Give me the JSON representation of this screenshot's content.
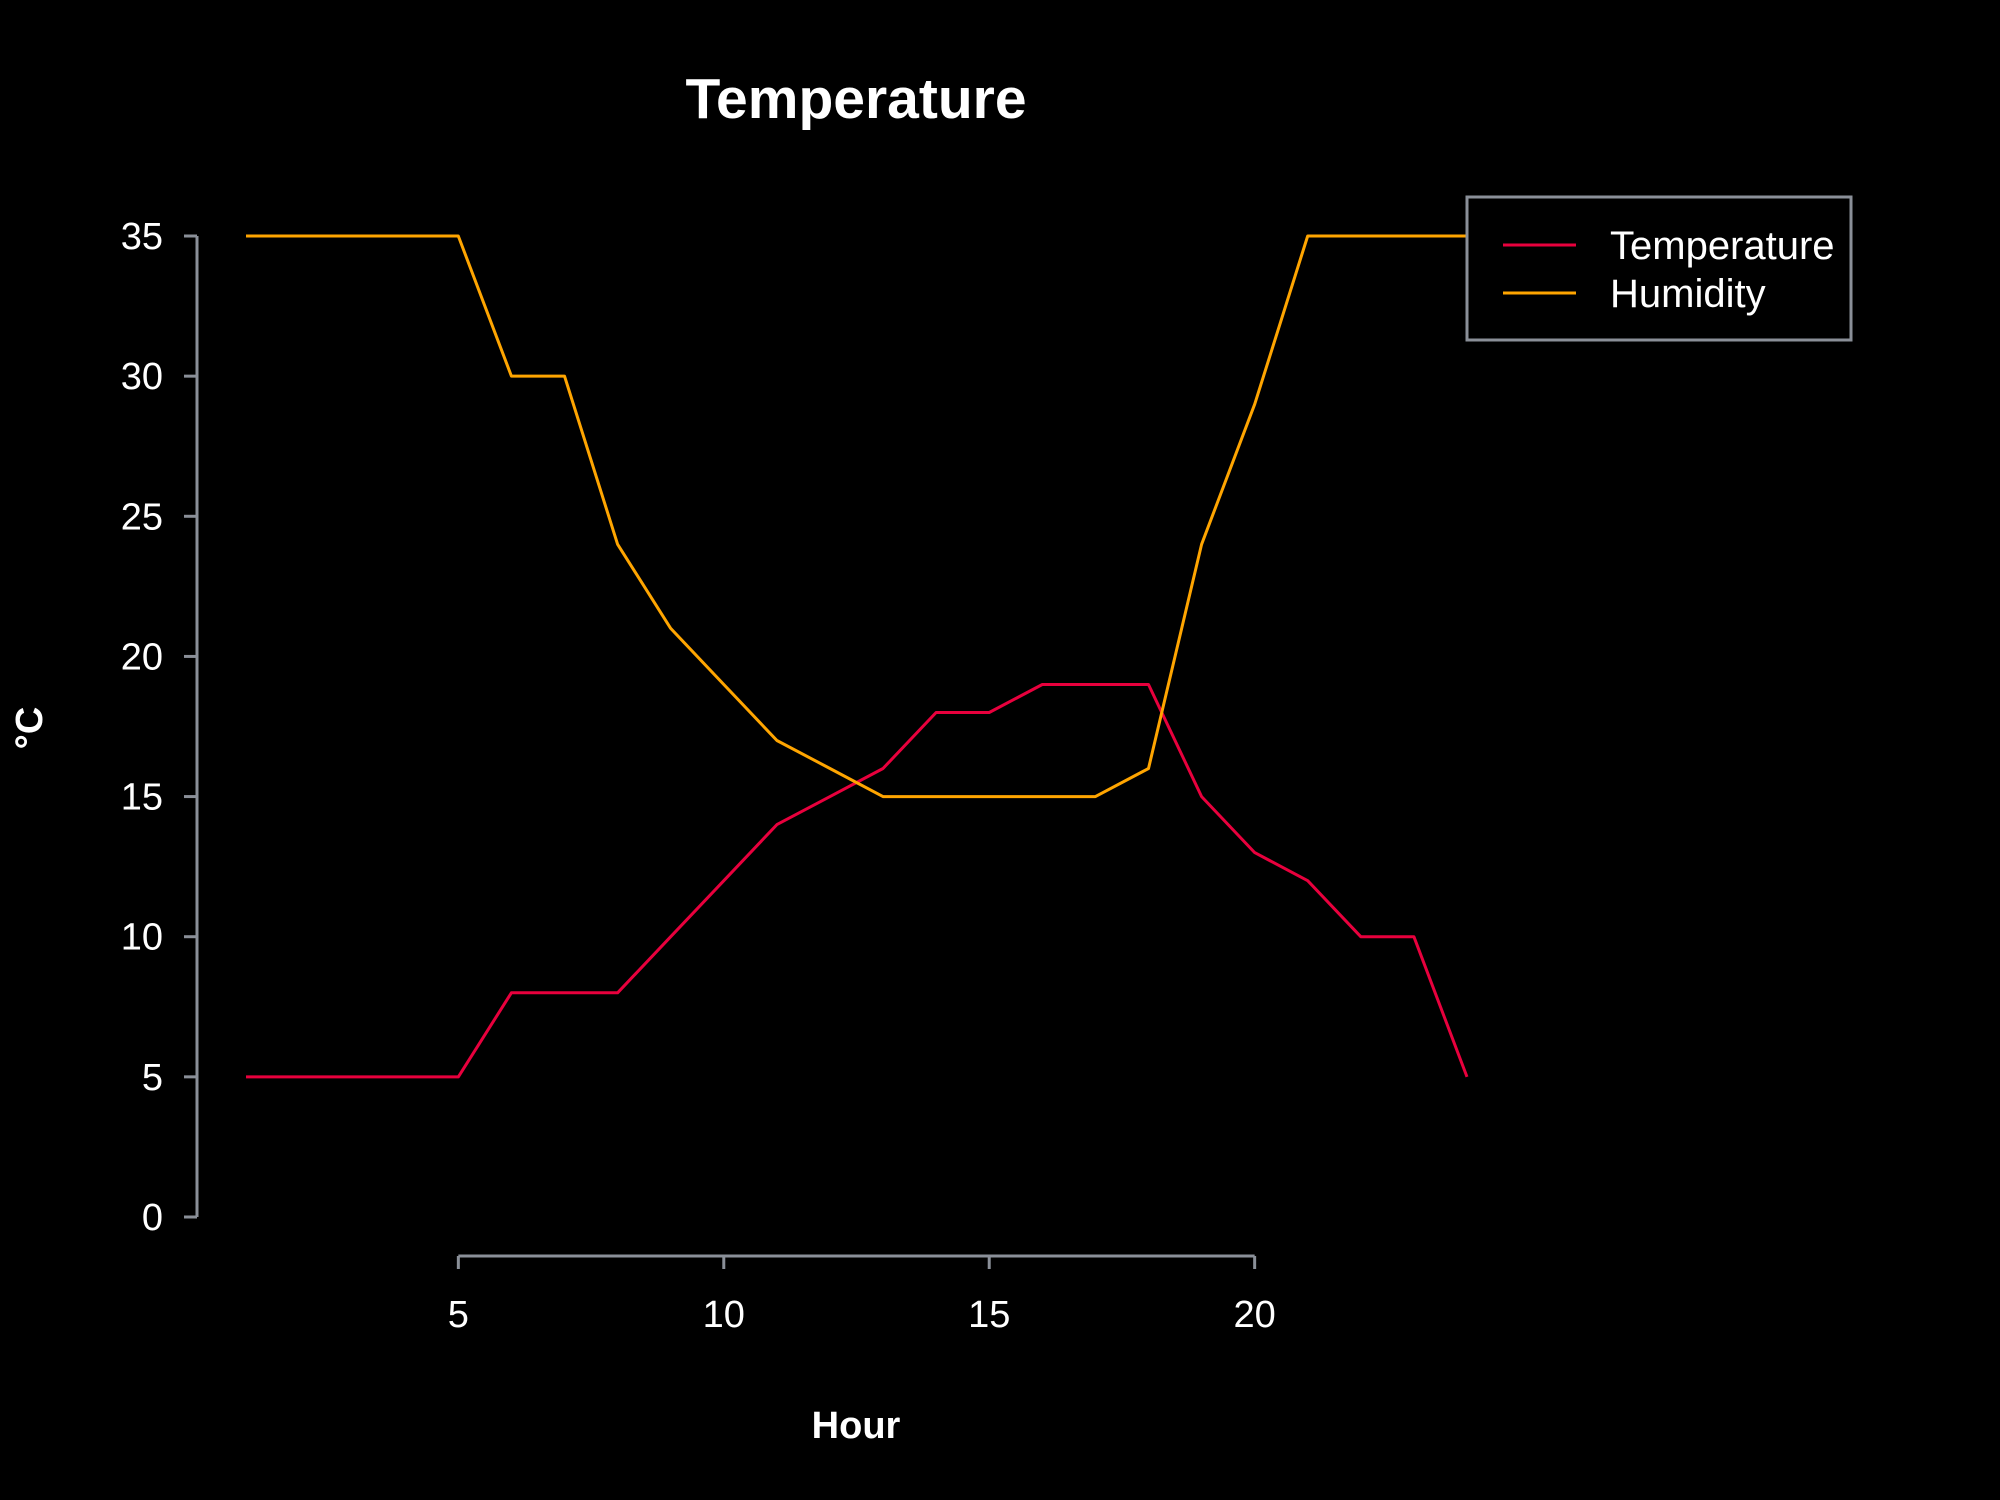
{
  "chart_data": {
    "type": "line",
    "title": "Temperature",
    "xlabel": "Hour",
    "ylabel": "°C",
    "xlim": [
      1,
      24
    ],
    "ylim": [
      0,
      35
    ],
    "x_ticks": [
      5,
      10,
      15,
      20
    ],
    "y_ticks": [
      0,
      5,
      10,
      15,
      20,
      25,
      30,
      35
    ],
    "x": [
      1,
      2,
      3,
      4,
      5,
      6,
      7,
      8,
      9,
      10,
      11,
      12,
      13,
      14,
      15,
      16,
      17,
      18,
      19,
      20,
      21,
      22,
      23,
      24
    ],
    "series": [
      {
        "name": "Temperature",
        "color": "#e8003d",
        "values": [
          5,
          5,
          5,
          5,
          5,
          8,
          8,
          8,
          10,
          12,
          14,
          15,
          16,
          18,
          18,
          19,
          19,
          19,
          15,
          13,
          12,
          10,
          10,
          5
        ]
      },
      {
        "name": "Humidity",
        "color": "#ffa500",
        "values": [
          35,
          35,
          35,
          35,
          35,
          30,
          30,
          24,
          21,
          19,
          17,
          16,
          15,
          15,
          15,
          15,
          15,
          16,
          24,
          29,
          35,
          35,
          35,
          35
        ]
      }
    ],
    "grid": false,
    "legend_position": "top-right",
    "background": "#000000",
    "axis_color": "#8a8f98",
    "text_color": "#ffffff"
  }
}
